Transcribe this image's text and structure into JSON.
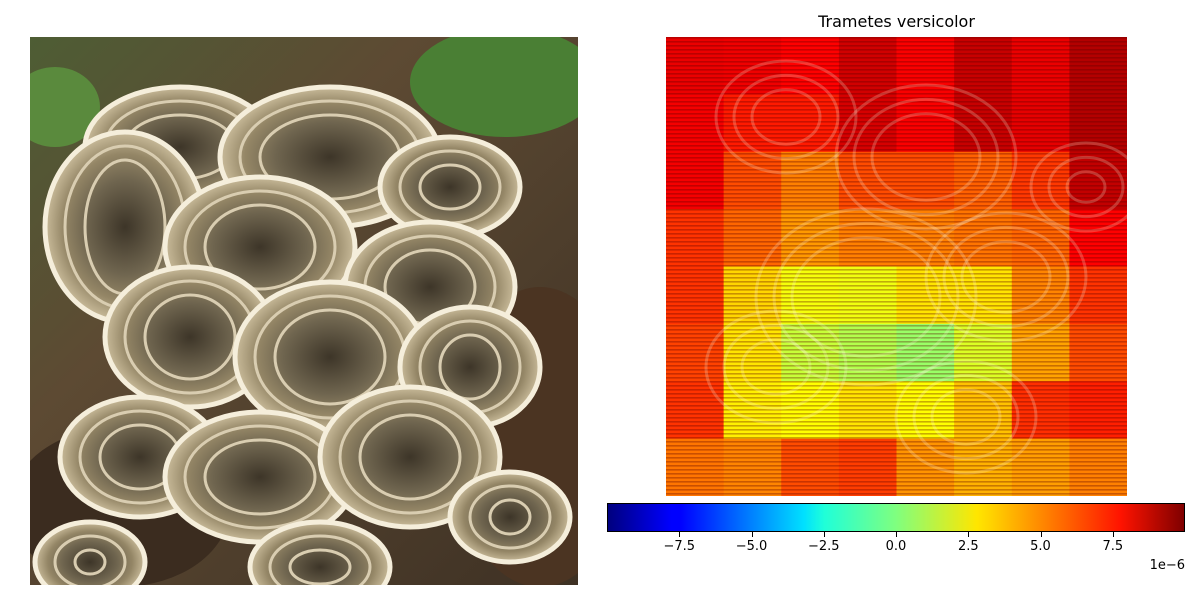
{
  "chart_data": {
    "type": "heatmap",
    "title": "Trametes versicolor",
    "colormap": "jet",
    "value_range": [
      -1e-05,
      1e-05
    ],
    "grid_rows": 8,
    "grid_cols": 8,
    "values": [
      [
        7.9e-06,
        7.8e-06,
        7.5e-06,
        8.4e-06,
        7.6e-06,
        8.6e-06,
        7.9e-06,
        9e-06
      ],
      [
        7.7e-06,
        7e-06,
        7e-06,
        8.3e-06,
        7.6e-06,
        8.6e-06,
        8e-06,
        9e-06
      ],
      [
        7.7e-06,
        6e-06,
        5e-06,
        6e-06,
        6e-06,
        5.6e-06,
        6.4e-06,
        8.7e-06
      ],
      [
        6.5e-06,
        5.5e-06,
        4.5e-06,
        5e-06,
        5e-06,
        5.2e-06,
        5.5e-06,
        7.5e-06
      ],
      [
        6.5e-06,
        3.3e-06,
        2.3e-06,
        2.2e-06,
        3e-06,
        3e-06,
        4.9e-06,
        6.5e-06
      ],
      [
        6.2e-06,
        3e-06,
        1.4e-06,
        1e-06,
        5e-07,
        1.8e-06,
        4.3e-06,
        6e-06
      ],
      [
        6.5e-06,
        2.8e-06,
        2.5e-06,
        3e-06,
        2.5e-06,
        3.7e-06,
        6.6e-06,
        6.9e-06
      ],
      [
        5.2e-06,
        4.9e-06,
        6e-06,
        6.3e-06,
        4.6e-06,
        4e-06,
        4.4e-06,
        5e-06
      ]
    ],
    "colorbar": {
      "ticks": [
        -7.5,
        -5.0,
        -2.5,
        0.0,
        2.5,
        5.0,
        7.5
      ],
      "tick_labels": [
        "−7.5",
        "−5.0",
        "−2.5",
        "0.0",
        "2.5",
        "5.0",
        "7.5"
      ],
      "multiplier": "1e−6",
      "range": [
        -10,
        10
      ]
    }
  }
}
